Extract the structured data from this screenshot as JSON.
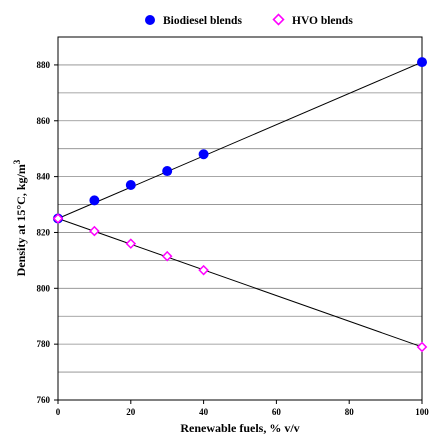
{
  "chart_data": {
    "type": "scatter",
    "xlabel": "Renewable fuels, % v/v",
    "ylabel": "Density at 15°C, kg/m",
    "ylabel_superscript": "3",
    "xlim": [
      0,
      100
    ],
    "ylim": [
      760,
      890
    ],
    "xticks": [
      0,
      20,
      40,
      60,
      80,
      100
    ],
    "yticks": [
      760,
      780,
      800,
      820,
      840,
      860,
      880
    ],
    "xtick_labels": [
      "0",
      "20",
      "40",
      "60",
      "80",
      "100"
    ],
    "ytick_labels": [
      "760",
      "780",
      "800",
      "820",
      "840",
      "860",
      "880"
    ],
    "grid": "horizontal, every 10",
    "legend_position": "top",
    "series": [
      {
        "name": "Biodiesel blends",
        "marker": "filled-circle",
        "color": "#0000ff",
        "x": [
          0,
          10,
          20,
          30,
          40,
          100
        ],
        "y": [
          825,
          831.5,
          837,
          842,
          848,
          881
        ],
        "trendline": [
          [
            0,
            825
          ],
          [
            100,
            881
          ]
        ]
      },
      {
        "name": "HVO blends",
        "marker": "open-diamond",
        "color": "#ff00ff",
        "x": [
          0,
          10,
          20,
          30,
          40,
          100
        ],
        "y": [
          825,
          820.5,
          816,
          811.5,
          806.5,
          779
        ],
        "trendline": [
          [
            0,
            825
          ],
          [
            100,
            779
          ]
        ]
      }
    ]
  }
}
